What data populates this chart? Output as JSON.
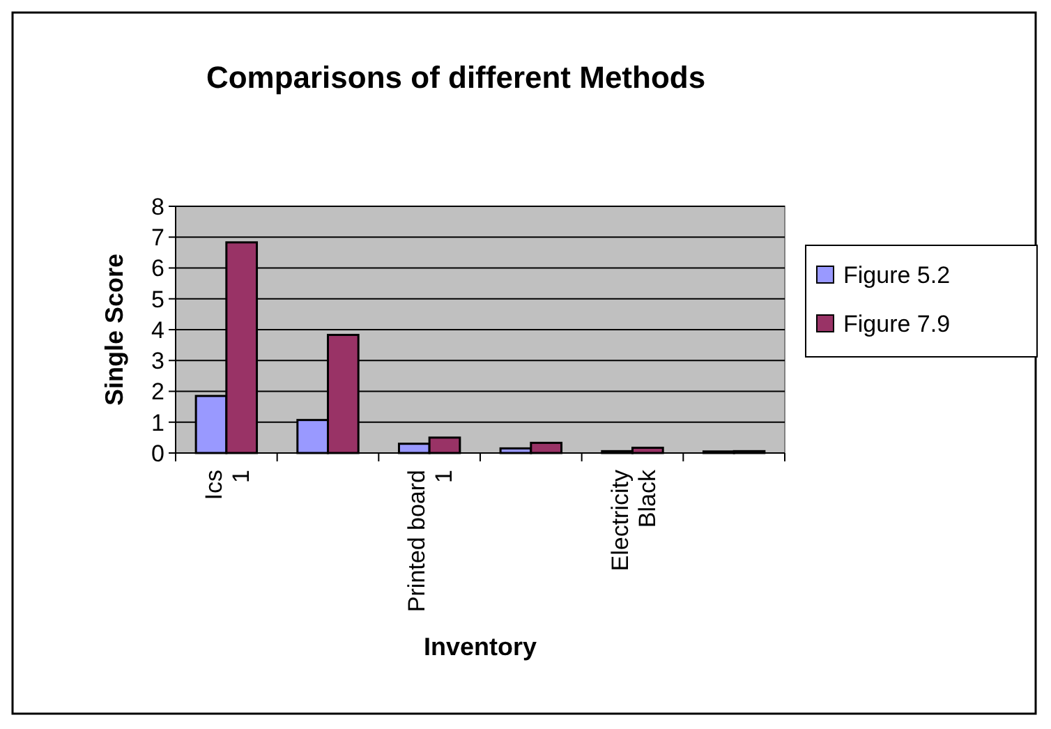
{
  "chart_data": {
    "type": "bar",
    "title": "Comparisons of different Methods",
    "xlabel": "Inventory",
    "ylabel": "Single Score",
    "categories": [
      "Ics 1",
      null,
      "Printed board 1",
      null,
      "Electricity Black",
      null
    ],
    "series": [
      {
        "name": "Figure 5.2",
        "color": "#9999ff",
        "values": [
          1.85,
          1.07,
          0.3,
          0.15,
          0.06,
          0.05
        ]
      },
      {
        "name": "Figure 7.9",
        "color": "#993366",
        "values": [
          6.83,
          3.83,
          0.5,
          0.33,
          0.17,
          0.06
        ]
      }
    ],
    "ylim": [
      0,
      8
    ],
    "yticks": [
      0,
      1,
      2,
      3,
      4,
      5,
      6,
      7,
      8
    ],
    "grid": "y",
    "legend": "right"
  }
}
